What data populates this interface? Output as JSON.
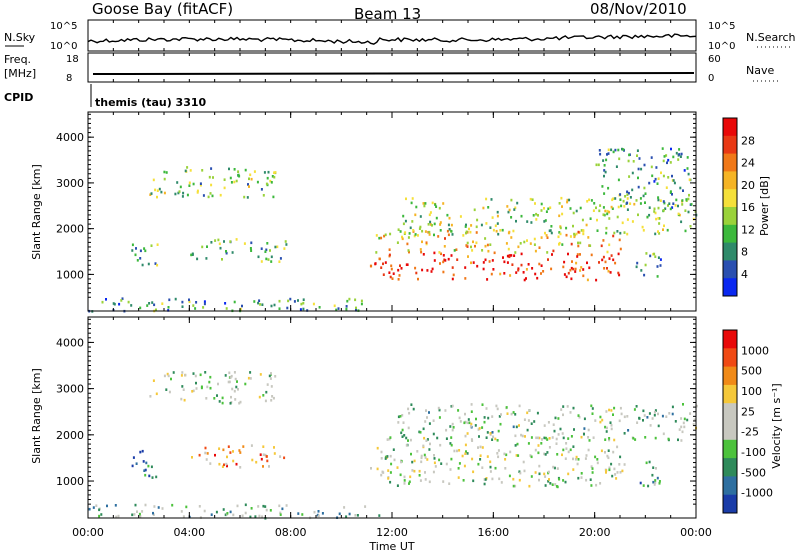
{
  "header": {
    "station": "Goose Bay (fitACF)",
    "beam": "Beam 13",
    "date": "08/Nov/2010"
  },
  "noise_panel": {
    "left_label": "N.Sky",
    "right_label": "N.Search",
    "left_ticks": [
      "10^5",
      "10^0"
    ],
    "right_ticks": [
      "10^5",
      "10^0"
    ]
  },
  "freq_panel": {
    "left_label_1": "Freq.",
    "left_label_2": "[MHz]",
    "right_label": "Nave",
    "left_ticks": [
      "18",
      "8"
    ],
    "right_ticks": [
      "60",
      "0"
    ]
  },
  "cpid_panel": {
    "label": "CPID",
    "text": "themis (tau) 3310"
  },
  "chart_data": [
    {
      "type": "heatmap",
      "name": "power",
      "ylabel": "Slant Range [km]",
      "yticks": [
        "4000",
        "3000",
        "2000",
        "1000"
      ],
      "ylim": [
        200,
        4550
      ],
      "colorbar_label": "Power [dB]",
      "colorbar_ticks": [
        "28",
        "24",
        "20",
        "16",
        "12",
        "8",
        "4"
      ],
      "colors": [
        "#0a28f0",
        "#2a4fb0",
        "#2f8a6a",
        "#3cb83c",
        "#9ad23a",
        "#f5e03a",
        "#f5b425",
        "#f07818",
        "#e83814",
        "#e80808"
      ],
      "regions": [
        {
          "t": [
            2.4,
            7.4
          ],
          "r": [
            2700,
            3400
          ],
          "level": 0.4
        },
        {
          "t": [
            1.7,
            2.8
          ],
          "r": [
            1100,
            1700
          ],
          "level": 0.3
        },
        {
          "t": [
            4.0,
            7.8
          ],
          "r": [
            1300,
            1800
          ],
          "level": 0.35
        },
        {
          "t": [
            0.0,
            11.5
          ],
          "r": [
            220,
            520
          ],
          "level": 0.3
        },
        {
          "t": [
            11.1,
            21.2
          ],
          "r": [
            900,
            1500
          ],
          "level": 0.9
        },
        {
          "t": [
            11.3,
            21.0
          ],
          "r": [
            1500,
            2000
          ],
          "level": 0.6
        },
        {
          "t": [
            12.2,
            24.0
          ],
          "r": [
            1900,
            2700
          ],
          "level": 0.45
        },
        {
          "t": [
            20.0,
            23.8
          ],
          "r": [
            2400,
            3800
          ],
          "level": 0.3
        },
        {
          "t": [
            21.5,
            22.6
          ],
          "r": [
            900,
            1500
          ],
          "level": 0.3
        }
      ]
    },
    {
      "type": "heatmap",
      "name": "velocity",
      "ylabel": "Slant Range [km]",
      "yticks": [
        "4000",
        "3000",
        "2000",
        "1000"
      ],
      "ylim": [
        200,
        4550
      ],
      "xlabel": "Time UT",
      "xticks": [
        "00:00",
        "04:00",
        "08:00",
        "12:00",
        "16:00",
        "20:00",
        "00:00"
      ],
      "xlim": [
        0,
        24
      ],
      "colorbar_label": "Velocity [m s⁻¹]",
      "colorbar_ticks": [
        "1000",
        "500",
        "100",
        "25",
        "-25",
        "-100",
        "-500",
        "-1000"
      ],
      "colors": [
        "#1a3ca8",
        "#2e6fa0",
        "#2e8a5a",
        "#4cc23c",
        "#c8c8c0",
        "#c8c8c0",
        "#f5c83a",
        "#f08a18",
        "#f04a14",
        "#e80808"
      ],
      "regions": [
        {
          "t": [
            2.4,
            7.4
          ],
          "r": [
            2700,
            3400
          ],
          "level": 0.45
        },
        {
          "t": [
            1.7,
            2.8
          ],
          "r": [
            1100,
            1700
          ],
          "level": 0.2
        },
        {
          "t": [
            4.0,
            7.8
          ],
          "r": [
            1300,
            1800
          ],
          "level": 0.7
        },
        {
          "t": [
            0.0,
            11.5
          ],
          "r": [
            220,
            520
          ],
          "level": 0.35
        },
        {
          "t": [
            11.1,
            21.2
          ],
          "r": [
            900,
            1500
          ],
          "level": 0.45
        },
        {
          "t": [
            11.3,
            21.0
          ],
          "r": [
            1500,
            2000
          ],
          "level": 0.45
        },
        {
          "t": [
            12.2,
            24.0
          ],
          "r": [
            1900,
            2700
          ],
          "level": 0.4
        },
        {
          "t": [
            21.5,
            22.6
          ],
          "r": [
            900,
            1500
          ],
          "level": 0.3
        }
      ]
    }
  ]
}
